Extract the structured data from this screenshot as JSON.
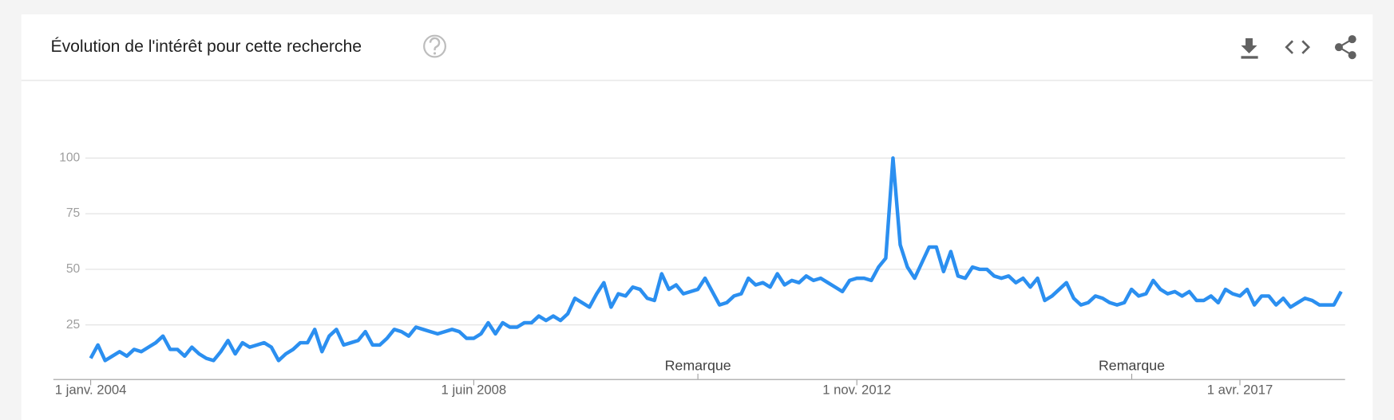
{
  "header": {
    "title": "Évolution de l'intérêt pour cette recherche"
  },
  "chart_data": {
    "type": "line",
    "categories": [
      "1 janv. 2004",
      null,
      null,
      null,
      null,
      null,
      null,
      null,
      null,
      null,
      null,
      null,
      null,
      null,
      null,
      null,
      null,
      null,
      null,
      null,
      null,
      null,
      null,
      null,
      null,
      null,
      null,
      null,
      null,
      null,
      null,
      null,
      null,
      null,
      null,
      null,
      null,
      null,
      null,
      null,
      null,
      null,
      null,
      null,
      null,
      null,
      null,
      null,
      null,
      null,
      null,
      null,
      null,
      "1 juin 2008",
      null,
      null,
      null,
      null,
      null,
      null,
      null,
      null,
      null,
      null,
      null,
      null,
      null,
      null,
      null,
      null,
      null,
      null,
      null,
      null,
      null,
      null,
      null,
      null,
      null,
      null,
      null,
      null,
      null,
      null,
      null,
      null,
      null,
      null,
      null,
      null,
      null,
      null,
      null,
      null,
      null,
      null,
      null,
      null,
      null,
      null,
      null,
      null,
      null,
      null,
      null,
      null,
      "1 nov. 2012",
      null,
      null,
      null,
      null,
      null,
      null,
      null,
      null,
      null,
      null,
      null,
      null,
      null,
      null,
      null,
      null,
      null,
      null,
      null,
      null,
      null,
      null,
      null,
      null,
      null,
      null,
      null,
      null,
      null,
      null,
      null,
      null,
      null,
      null,
      null,
      null,
      null,
      null,
      null,
      null,
      null,
      null,
      null,
      null,
      null,
      null,
      null,
      null,
      null,
      null,
      null,
      null,
      "1 avr. 2017",
      null,
      null,
      null,
      null,
      null,
      null,
      null,
      null,
      null,
      null,
      null,
      null,
      null,
      null
    ],
    "values": [
      10,
      16,
      9,
      11,
      13,
      11,
      14,
      13,
      15,
      17,
      20,
      14,
      14,
      11,
      15,
      12,
      10,
      9,
      13,
      18,
      12,
      17,
      15,
      16,
      17,
      15,
      9,
      12,
      14,
      17,
      17,
      23,
      13,
      20,
      23,
      16,
      17,
      18,
      22,
      16,
      16,
      19,
      23,
      22,
      20,
      24,
      23,
      22,
      21,
      22,
      23,
      22,
      19,
      19,
      21,
      26,
      21,
      26,
      24,
      24,
      26,
      26,
      29,
      27,
      29,
      27,
      30,
      37,
      35,
      33,
      39,
      44,
      33,
      39,
      38,
      42,
      41,
      37,
      36,
      48,
      41,
      43,
      39,
      40,
      41,
      46,
      40,
      34,
      35,
      38,
      39,
      46,
      43,
      44,
      42,
      48,
      43,
      45,
      44,
      47,
      45,
      46,
      44,
      42,
      40,
      45,
      46,
      46,
      45,
      51,
      55,
      100,
      61,
      51,
      46,
      53,
      60,
      60,
      49,
      58,
      47,
      46,
      51,
      50,
      50,
      47,
      46,
      47,
      44,
      46,
      42,
      46,
      36,
      38,
      41,
      44,
      37,
      34,
      35,
      38,
      37,
      35,
      34,
      35,
      41,
      38,
      39,
      45,
      41,
      39,
      40,
      38,
      40,
      36,
      36,
      38,
      35,
      41,
      39,
      38,
      41,
      34,
      38,
      38,
      34,
      37,
      33,
      35,
      37,
      36,
      34,
      34,
      34,
      40
    ],
    "color": "#2b8ff0",
    "ylim": [
      0,
      100
    ],
    "yticks": [
      25,
      50,
      75,
      100
    ],
    "grid": true,
    "annotations": [
      "Remarque",
      "Remarque"
    ]
  }
}
